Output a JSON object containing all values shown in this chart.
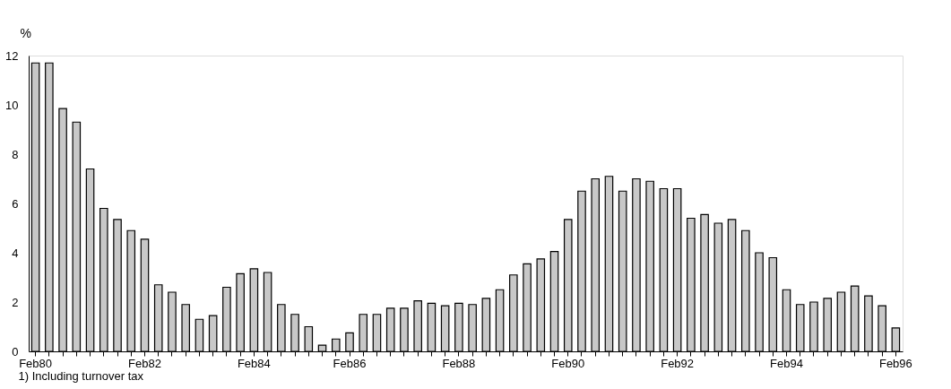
{
  "chart_data": {
    "type": "bar",
    "ylabel": "%",
    "categories": [
      "Feb80",
      null,
      null,
      null,
      null,
      null,
      null,
      null,
      "Feb82",
      null,
      null,
      null,
      null,
      null,
      null,
      null,
      "Feb84",
      null,
      null,
      null,
      null,
      null,
      null,
      null,
      "Feb86",
      null,
      null,
      null,
      null,
      null,
      null,
      null,
      "Feb88",
      null,
      null,
      null,
      null,
      null,
      null,
      null,
      "Feb90",
      null,
      null,
      null,
      null,
      null,
      null,
      null,
      "Feb92",
      null,
      null,
      null,
      null,
      null,
      null,
      null,
      "Feb94",
      null,
      null,
      null,
      null,
      null,
      null,
      null,
      "Feb96"
    ],
    "values": [
      11.7,
      11.7,
      9.85,
      9.3,
      7.4,
      5.8,
      5.35,
      4.9,
      4.55,
      2.7,
      2.4,
      1.9,
      1.3,
      1.45,
      2.6,
      3.15,
      3.35,
      3.2,
      1.9,
      1.5,
      1.0,
      null,
      0.25,
      0.5,
      0.75,
      1.5,
      1.5,
      1.75,
      1.75,
      2.05,
      1.95,
      1.85,
      1.95,
      1.9,
      2.15,
      2.5,
      3.1,
      3.55,
      3.75,
      4.05,
      5.35,
      6.5,
      7.0,
      7.1,
      6.5,
      7.0,
      6.9,
      6.6,
      6.6,
      5.4,
      5.55,
      5.2,
      5.35,
      4.9,
      4.0,
      3.8,
      2.5,
      1.9,
      2.0,
      2.15,
      2.4,
      2.65,
      2.25,
      1.85,
      0.95
    ],
    "color": "#c8c8c8",
    "ylim": [
      0,
      12
    ],
    "yticks": [
      0,
      2,
      4,
      6,
      8,
      10,
      12
    ],
    "grid": false,
    "annotations": [
      "1) Including turnover tax"
    ]
  }
}
